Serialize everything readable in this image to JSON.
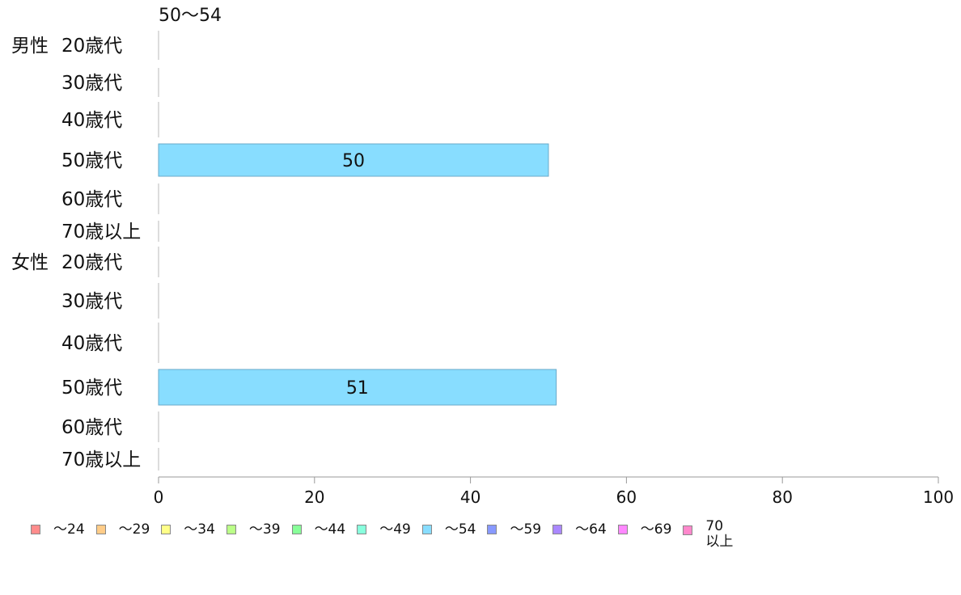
{
  "chart_data": {
    "type": "bar",
    "orientation": "horizontal",
    "title": "50〜54",
    "groups": [
      {
        "label": "男性",
        "categories": [
          "20歳代",
          "30歳代",
          "40歳代",
          "50歳代",
          "60歳代",
          "70歳以上"
        ]
      },
      {
        "label": "女性",
        "categories": [
          "20歳代",
          "30歳代",
          "40歳代",
          "50歳代",
          "60歳代",
          "70歳以上"
        ]
      }
    ],
    "series": [
      {
        "name": "〜54",
        "color": "#88ddff",
        "values": [
          0,
          0,
          0,
          50,
          0,
          0,
          0,
          0,
          0,
          51,
          0,
          0
        ]
      }
    ],
    "data_labels": [
      "",
      "",
      "",
      "50",
      "",
      "",
      "",
      "",
      "",
      "51",
      "",
      ""
    ],
    "xlim": [
      0,
      100
    ],
    "xticks": [
      "0",
      "20",
      "40",
      "60",
      "80",
      "100"
    ],
    "grid": false,
    "legend_position": "bottom",
    "legend": [
      {
        "label": "〜24",
        "color": "#ff8c8c"
      },
      {
        "label": "〜29",
        "color": "#ffcc88"
      },
      {
        "label": "〜34",
        "color": "#ffff88"
      },
      {
        "label": "〜39",
        "color": "#bbff88"
      },
      {
        "label": "〜44",
        "color": "#88ff99"
      },
      {
        "label": "〜49",
        "color": "#88ffdd"
      },
      {
        "label": "〜54",
        "color": "#88ddff"
      },
      {
        "label": "〜59",
        "color": "#8899ff"
      },
      {
        "label": "〜64",
        "color": "#aa88ff"
      },
      {
        "label": "〜69",
        "color": "#ff88ff"
      },
      {
        "label": "70\n以上",
        "color": "#ff88cc"
      }
    ]
  }
}
